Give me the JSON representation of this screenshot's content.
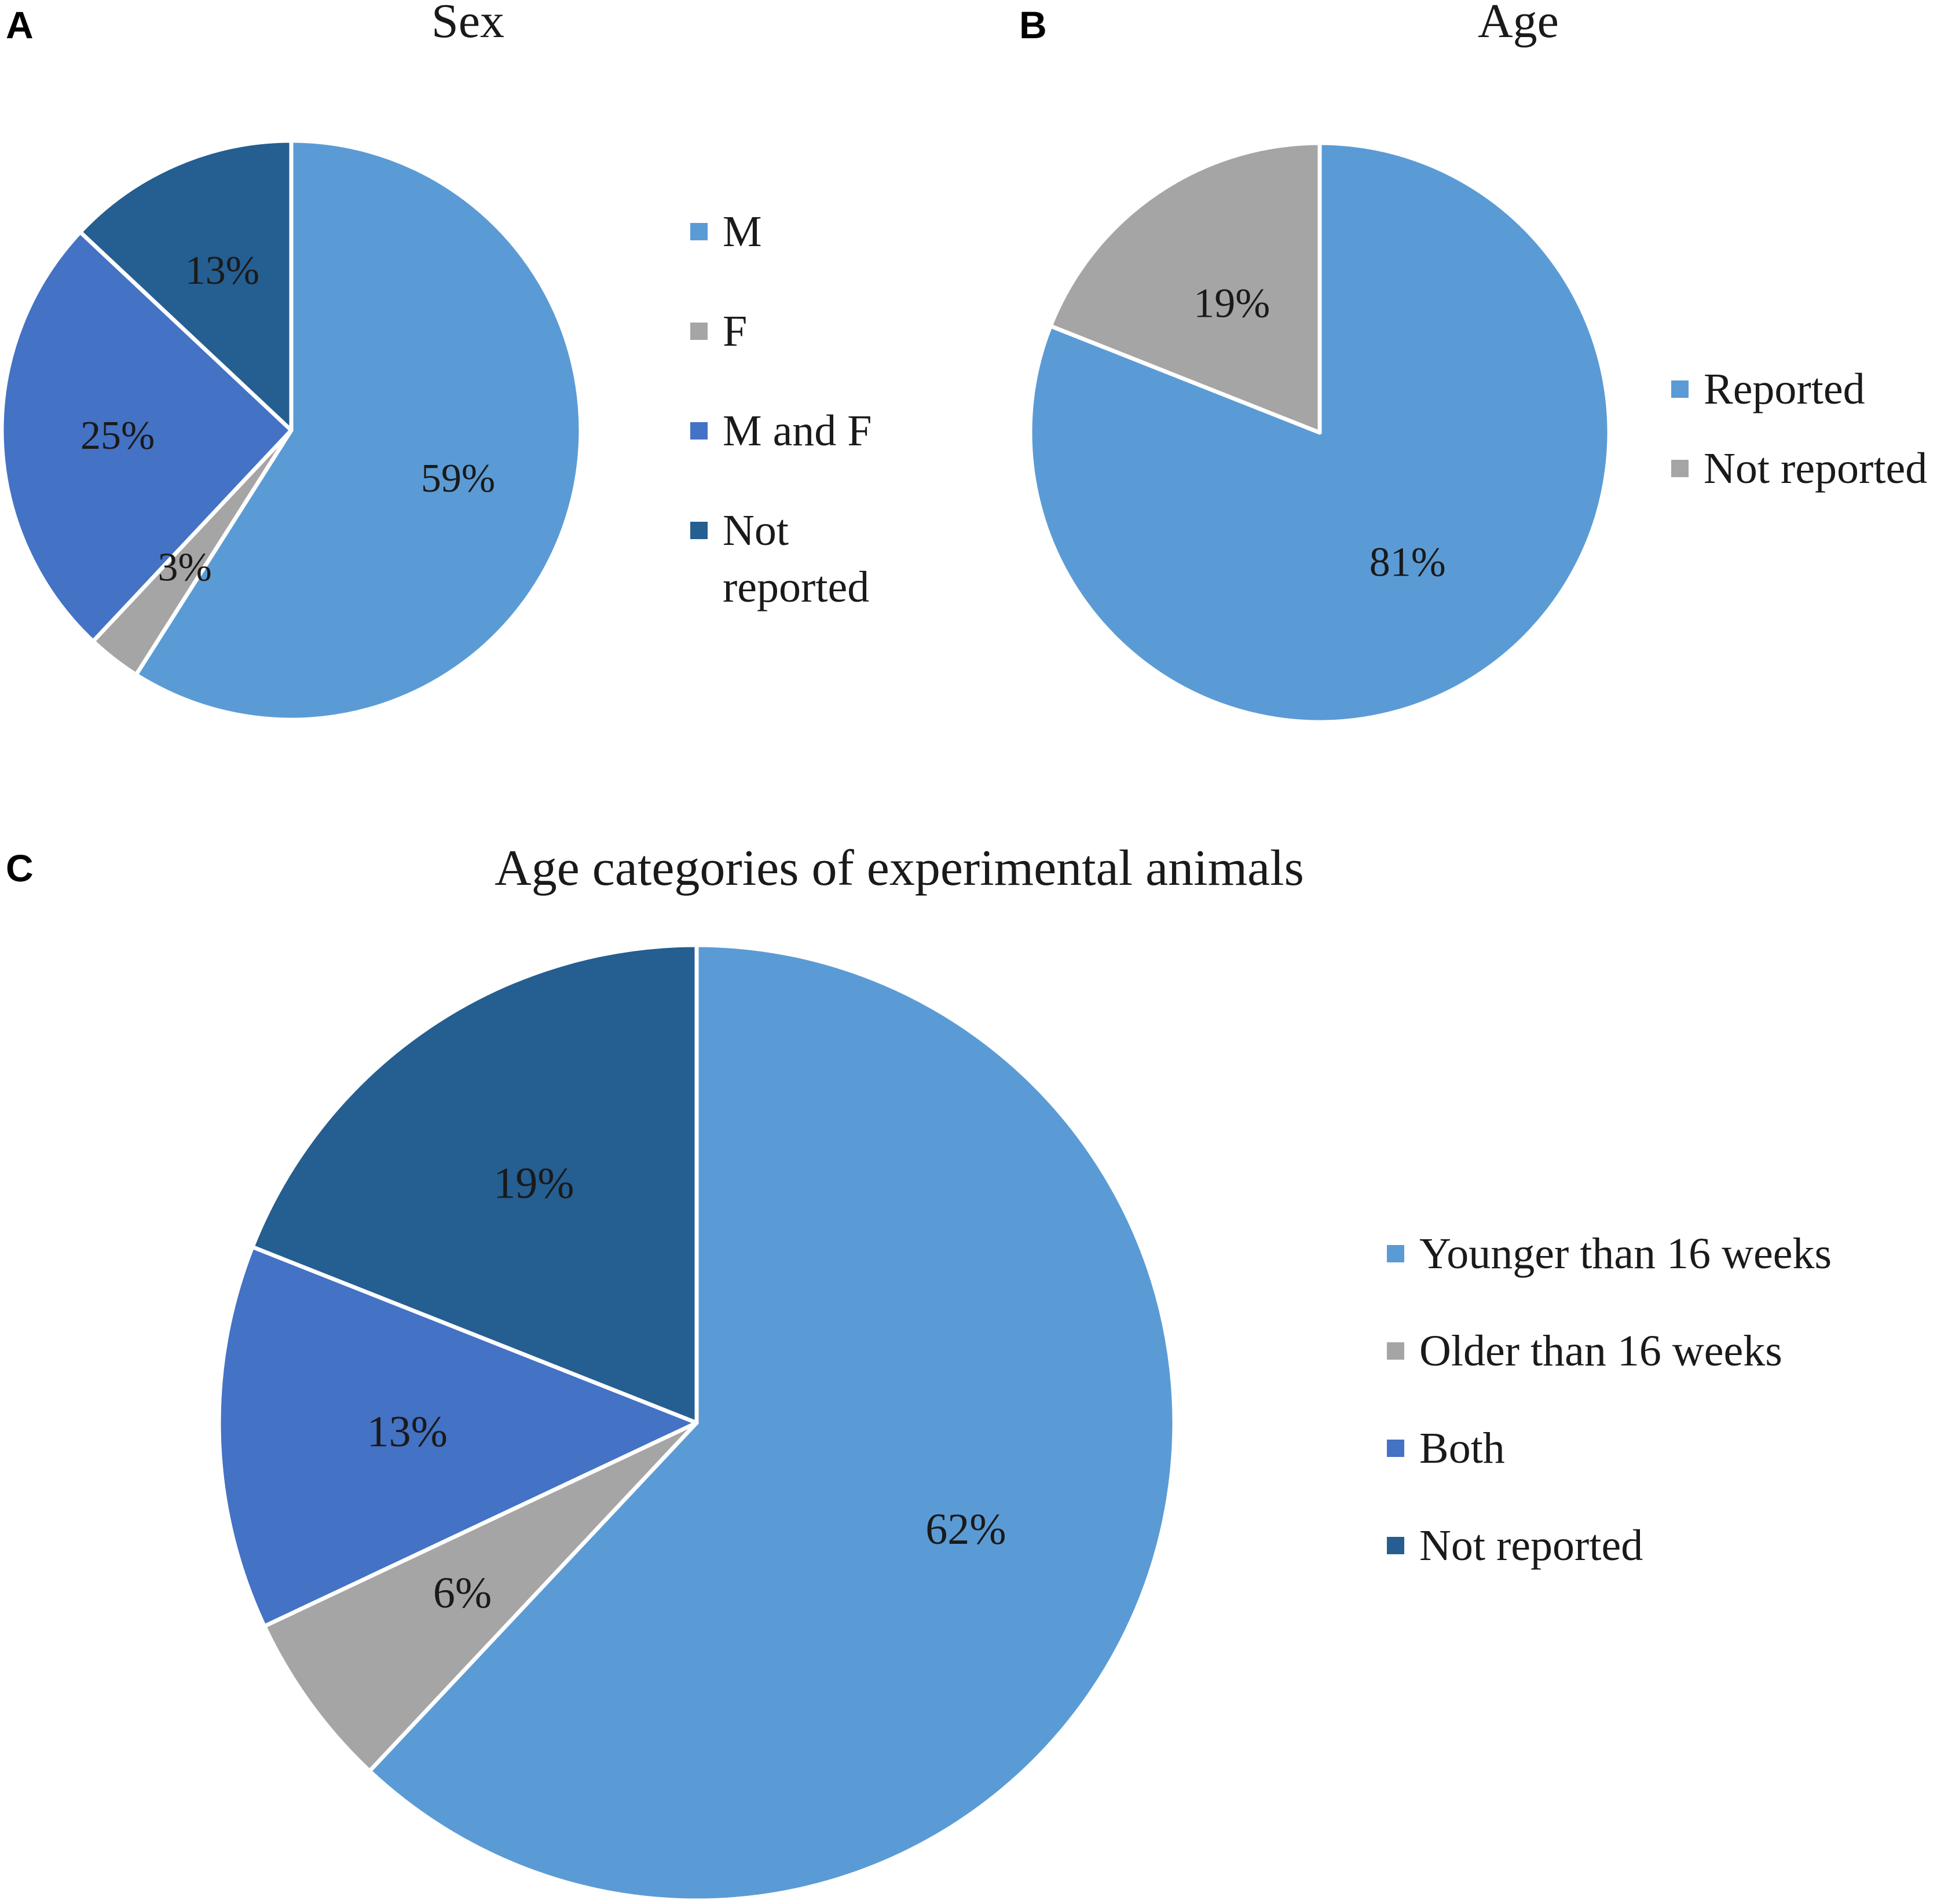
{
  "colors": {
    "light_blue": "#5b9bd5",
    "gray": "#a5a5a5",
    "royal_blue": "#4472c4",
    "dark_blue": "#255e91",
    "separator": "#ffffff"
  },
  "chart_data": [
    {
      "panel": "A",
      "type": "pie",
      "title": "Sex",
      "slices": [
        {
          "label": "M",
          "value": 59,
          "display": "59%",
          "color": "#5b9bd5"
        },
        {
          "label": "F",
          "value": 3,
          "display": "3%",
          "color": "#a5a5a5"
        },
        {
          "label": "M and F",
          "value": 25,
          "display": "25%",
          "color": "#4472c4"
        },
        {
          "label": "Not reported",
          "value": 13,
          "display": "13%",
          "color": "#255e91"
        }
      ],
      "legend": [
        {
          "lines": [
            "M"
          ],
          "color": "#5b9bd5"
        },
        {
          "lines": [
            "F"
          ],
          "color": "#a5a5a5"
        },
        {
          "lines": [
            "M and F"
          ],
          "color": "#4472c4"
        },
        {
          "lines": [
            "Not",
            "reported"
          ],
          "color": "#255e91"
        }
      ],
      "legend_position": "right"
    },
    {
      "panel": "B",
      "type": "pie",
      "title": "Age",
      "slices": [
        {
          "label": "Reported",
          "value": 81,
          "display": "81%",
          "color": "#5b9bd5"
        },
        {
          "label": "Not reported",
          "value": 19,
          "display": "19%",
          "color": "#a5a5a5"
        }
      ],
      "legend": [
        {
          "lines": [
            "Reported"
          ],
          "color": "#5b9bd5"
        },
        {
          "lines": [
            "Not reported"
          ],
          "color": "#a5a5a5"
        }
      ],
      "legend_position": "right"
    },
    {
      "panel": "C",
      "type": "pie",
      "title": "Age categories of experimental animals",
      "slices": [
        {
          "label": "Younger than 16 weeks",
          "value": 62,
          "display": "62%",
          "color": "#5b9bd5"
        },
        {
          "label": "Older than 16 weeks",
          "value": 6,
          "display": "6%",
          "color": "#a5a5a5"
        },
        {
          "label": "Both",
          "value": 13,
          "display": "13%",
          "color": "#4472c4"
        },
        {
          "label": "Not reported",
          "value": 19,
          "display": "19%",
          "color": "#255e91"
        }
      ],
      "legend": [
        {
          "lines": [
            "Younger than 16 weeks"
          ],
          "color": "#5b9bd5"
        },
        {
          "lines": [
            "Older than 16 weeks"
          ],
          "color": "#a5a5a5"
        },
        {
          "lines": [
            "Both"
          ],
          "color": "#4472c4"
        },
        {
          "lines": [
            "Not reported"
          ],
          "color": "#255e91"
        }
      ],
      "legend_position": "right"
    }
  ]
}
